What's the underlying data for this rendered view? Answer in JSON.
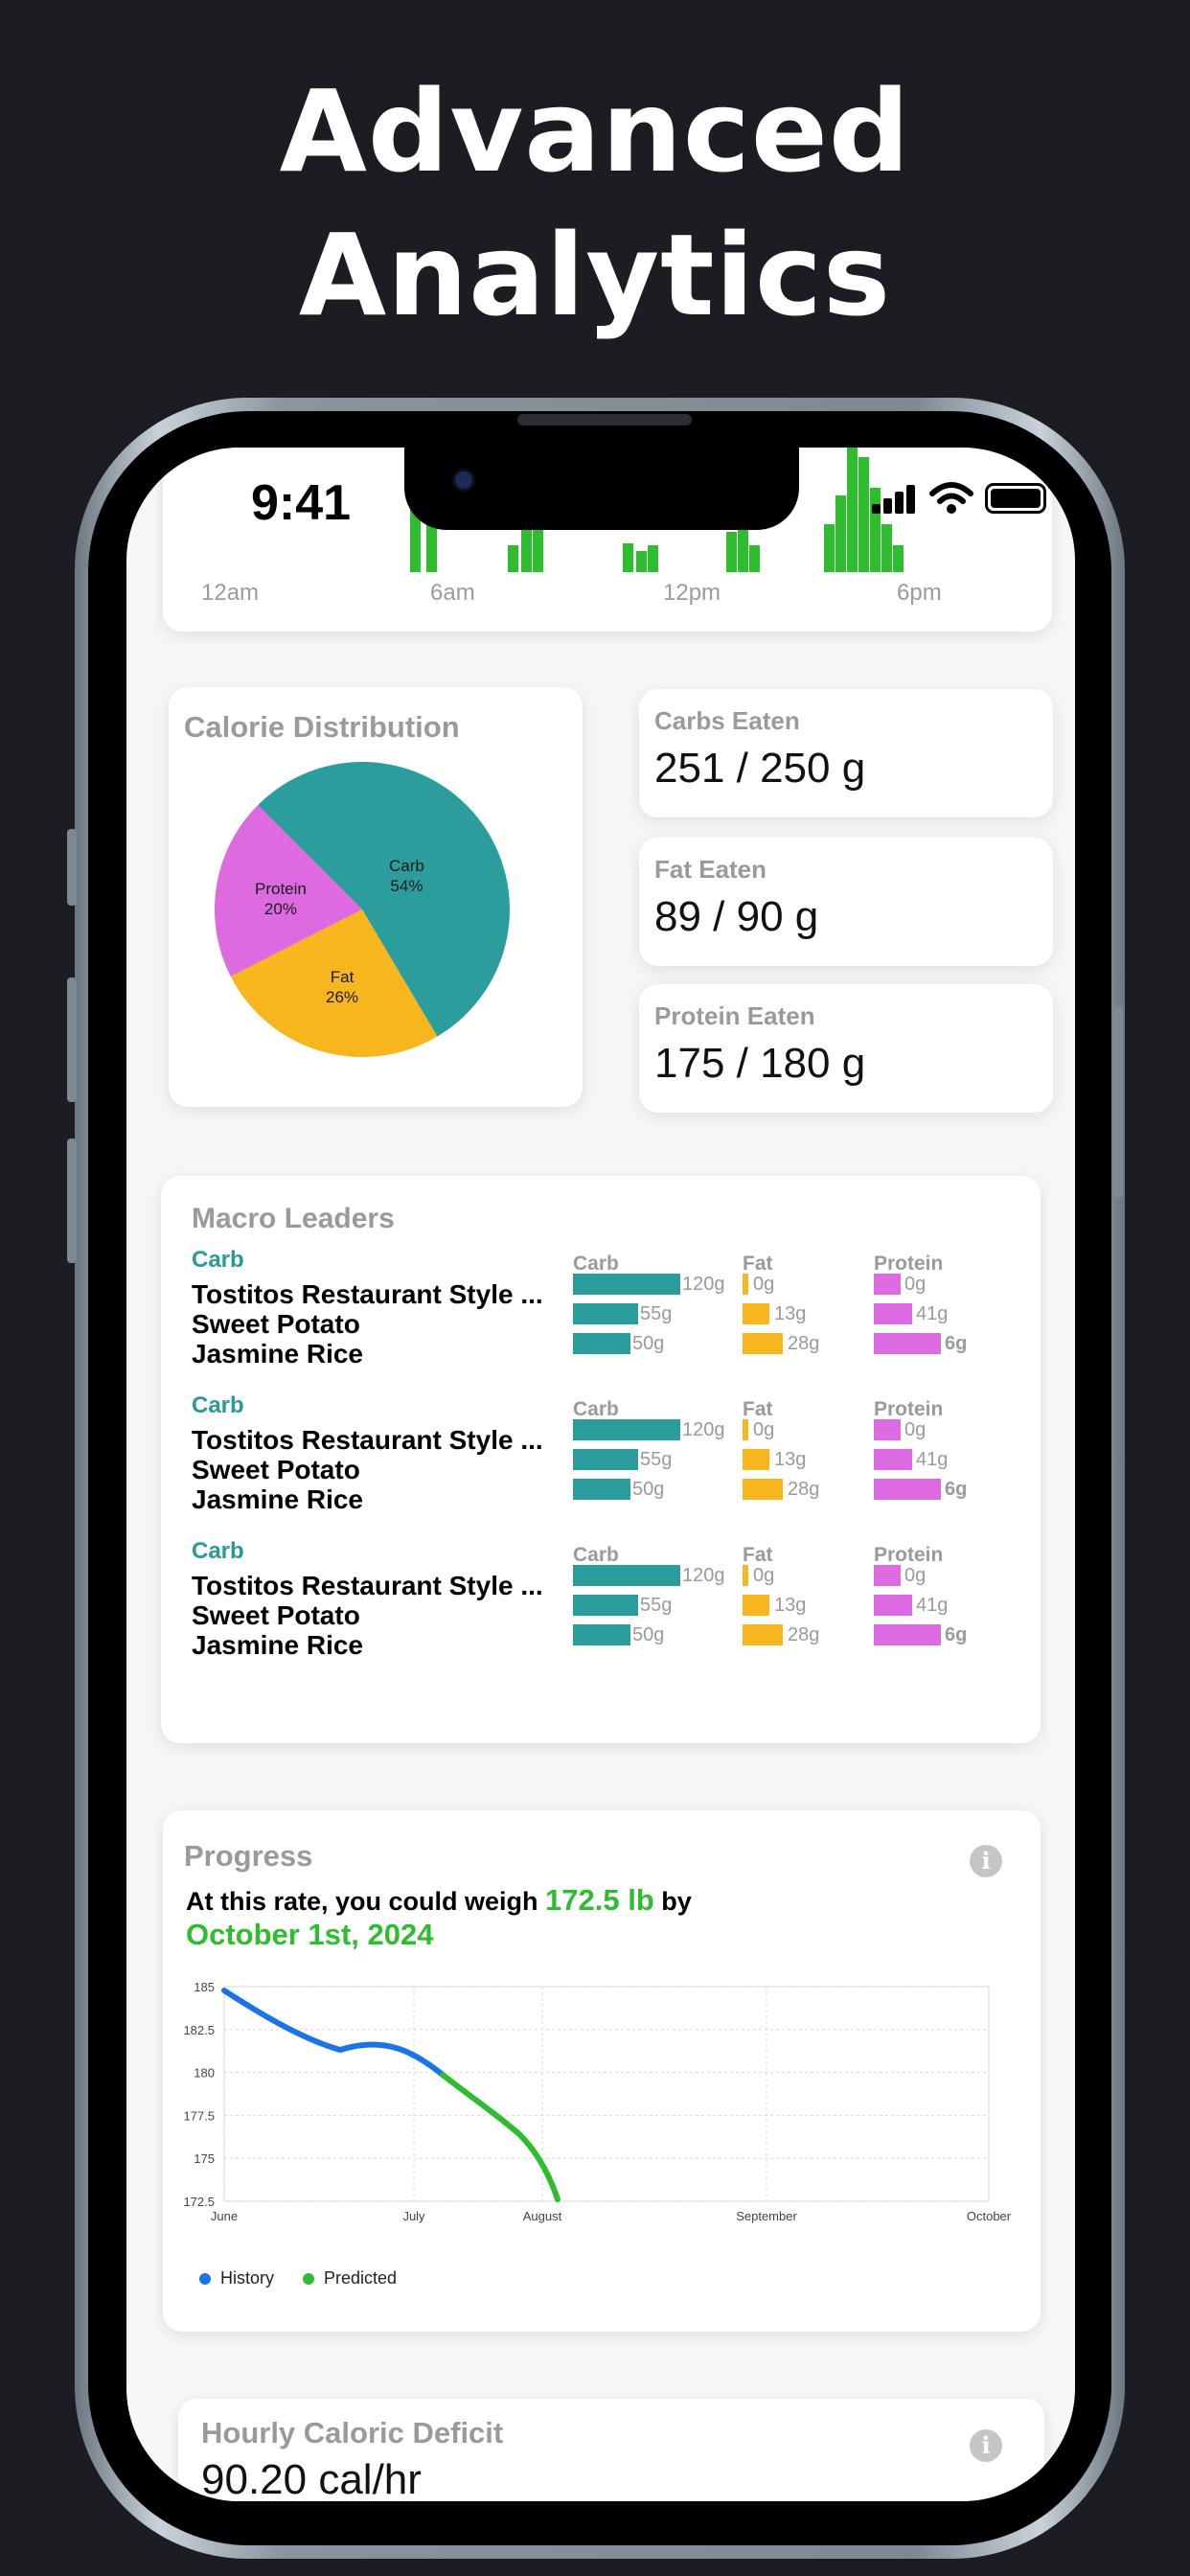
{
  "headline": {
    "line1": "Advanced",
    "line2": "Analytics"
  },
  "status_bar": {
    "time": "9:41"
  },
  "hourly_chart": {
    "labels": [
      "12am",
      "6am",
      "12pm",
      "6pm"
    ]
  },
  "calorie_distribution": {
    "title": "Calorie Distribution",
    "slices": [
      {
        "name": "Carb",
        "percent": "54%",
        "value": 54,
        "color": "#2a9d9c"
      },
      {
        "name": "Fat",
        "percent": "26%",
        "value": 26,
        "color": "#f7b51e"
      },
      {
        "name": "Protein",
        "percent": "20%",
        "value": 20,
        "color": "#dd6ae0"
      }
    ]
  },
  "macros": [
    {
      "title": "Carbs Eaten",
      "value": "251 / 250 g"
    },
    {
      "title": "Fat Eaten",
      "value": "89 / 90 g"
    },
    {
      "title": "Protein Eaten",
      "value": "175 / 180 g"
    }
  ],
  "macro_leaders": {
    "title": "Macro Leaders",
    "column_heads": {
      "carb": "Carb",
      "fat": "Fat",
      "protein": "Protein"
    },
    "groups": [
      {
        "category": "Carb",
        "foods": [
          "Tostitos Restaurant Style ...",
          "Sweet Potato",
          "Jasmine Rice"
        ],
        "carb": [
          "120g",
          "55g",
          "50g"
        ],
        "fat": [
          "0g",
          "13g",
          "28g"
        ],
        "protein": [
          "0g",
          "41g",
          "6g"
        ]
      },
      {
        "category": "Carb",
        "foods": [
          "Tostitos Restaurant Style ...",
          "Sweet Potato",
          "Jasmine Rice"
        ],
        "carb": [
          "120g",
          "55g",
          "50g"
        ],
        "fat": [
          "0g",
          "13g",
          "28g"
        ],
        "protein": [
          "0g",
          "41g",
          "6g"
        ]
      },
      {
        "category": "Carb",
        "foods": [
          "Tostitos Restaurant Style ...",
          "Sweet Potato",
          "Jasmine Rice"
        ],
        "carb": [
          "120g",
          "55g",
          "50g"
        ],
        "fat": [
          "0g",
          "13g",
          "28g"
        ],
        "protein": [
          "0g",
          "41g",
          "6g"
        ]
      }
    ]
  },
  "progress": {
    "title": "Progress",
    "line_prefix": "At this rate, you could weigh ",
    "weight": "172.5 lb",
    "line_suffix": " by",
    "date": "October 1st, 2024",
    "y_ticks": [
      "185",
      "182.5",
      "180",
      "177.5",
      "175",
      "172.5"
    ],
    "x_ticks": [
      "June",
      "July",
      "August",
      "September",
      "October"
    ],
    "legend": [
      {
        "label": "History",
        "color": "#1a73e8"
      },
      {
        "label": "Predicted",
        "color": "#2ebd2e"
      }
    ]
  },
  "deficit": {
    "title": "Hourly Caloric Deficit",
    "value": "90.20 cal/hr"
  }
}
